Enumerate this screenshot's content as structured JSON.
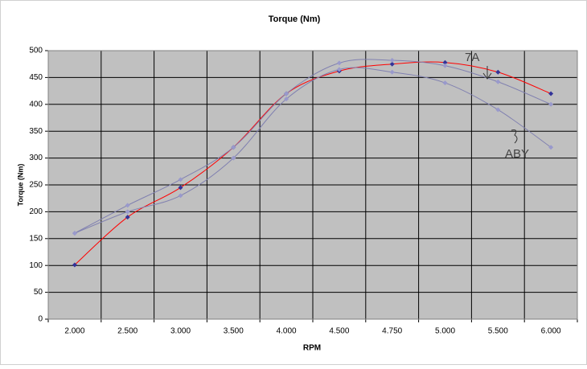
{
  "chart_data": {
    "type": "line",
    "title": "Torque (Nm)",
    "x_label": "RPM",
    "y_label": "Torque (Nm)",
    "categories": [
      "2.000",
      "2.500",
      "3.000",
      "3.500",
      "4.000",
      "4.500",
      "4.750",
      "5.000",
      "5.500",
      "6.000"
    ],
    "series": [
      {
        "color": "#ff0000",
        "marker_color": "#333399",
        "values": [
          101,
          190,
          245,
          320,
          420,
          462,
          475,
          478,
          460,
          420
        ]
      },
      {
        "color": "#8080b0",
        "marker_color": "#9999cc",
        "values": [
          160,
          212,
          260,
          320,
          420,
          477,
          482,
          472,
          442,
          400
        ]
      },
      {
        "color": "#8080b0",
        "marker_color": "#9999cc",
        "values": [
          160,
          200,
          230,
          300,
          410,
          465,
          460,
          440,
          390,
          320
        ]
      }
    ],
    "ylim": [
      0,
      500
    ],
    "yticks": [
      0,
      50,
      100,
      150,
      200,
      250,
      300,
      350,
      400,
      450,
      500
    ],
    "grid": true,
    "plot_background": "#c0c0c0",
    "smooth": true,
    "annotations": [
      "7A",
      "ABY"
    ]
  }
}
